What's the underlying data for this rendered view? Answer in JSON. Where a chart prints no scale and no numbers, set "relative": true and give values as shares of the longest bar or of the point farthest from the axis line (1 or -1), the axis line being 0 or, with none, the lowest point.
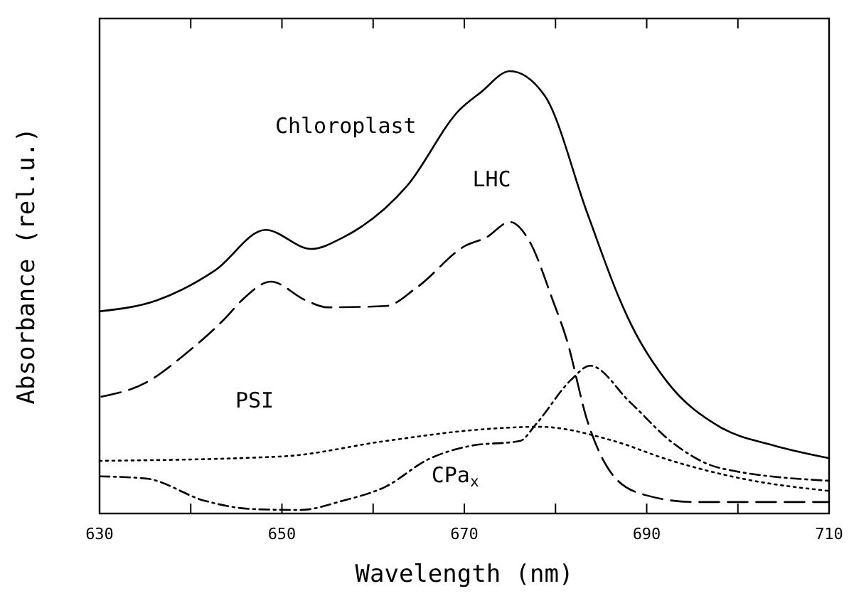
{
  "chart_data": {
    "type": "line",
    "relative": true,
    "xlabel": "Wavelength (nm)",
    "ylabel": "Absorbance (rel.u.)",
    "xlim": [
      630,
      710
    ],
    "xticks": [
      630,
      {
        "value": 640,
        "label": null
      },
      650,
      {
        "value": 660,
        "label": null
      },
      670,
      {
        "value": 680,
        "label": null
      },
      690,
      {
        "value": 700,
        "label": null
      },
      710
    ],
    "grid": false,
    "marker": "none",
    "series": [
      {
        "name": "Chloroplast",
        "color": "#000000",
        "line_style": "solid",
        "x": [
          630,
          636.3,
          642.7,
          648.2,
          653.2,
          656.7,
          663.7,
          669.5,
          671.8,
          675,
          678.8,
          683.5,
          687,
          688.2,
          692.3,
          698,
          703.9,
          710
        ],
        "values": [
          0.457,
          0.482,
          0.55,
          0.641,
          0.598,
          0.624,
          0.74,
          0.913,
          0.952,
          1,
          0.945,
          0.678,
          0.486,
          0.431,
          0.296,
          0.196,
          0.154,
          0.125
        ]
      },
      {
        "name": "LHC",
        "color": "#000000",
        "line_style": "longdash",
        "x": [
          630.2,
          635.1,
          639.2,
          643.9,
          645.6,
          648.8,
          652.6,
          655,
          661.4,
          664.8,
          670.1,
          672.4,
          675,
          677.1,
          679.7,
          681.2,
          683.5,
          686.4,
          689.8,
          695.2,
          710
        ],
        "values": [
          0.264,
          0.296,
          0.357,
          0.444,
          0.482,
          0.524,
          0.482,
          0.466,
          0.469,
          0.511,
          0.605,
          0.624,
          0.659,
          0.617,
          0.482,
          0.395,
          0.209,
          0.084,
          0.042,
          0.026,
          0.026
        ]
      },
      {
        "name": "PSI",
        "color": "#000000",
        "line_style": "dotted",
        "x": [
          630,
          650,
          661.4,
          671.8,
          678.2,
          686.4,
          692.3,
          700.9,
          710
        ],
        "values": [
          0.119,
          0.129,
          0.164,
          0.19,
          0.196,
          0.164,
          0.122,
          0.077,
          0.051
        ]
      },
      {
        "name": "CPa$_{x}$",
        "color": "#000000",
        "line_style": "dashdot",
        "x": [
          630,
          635.1,
          641.5,
          646.8,
          652,
          656.7,
          661.4,
          666,
          670.7,
          676.1,
          677.9,
          681.7,
          683.8,
          688.2,
          692.9,
          698,
          710
        ],
        "values": [
          0.084,
          0.079,
          0.029,
          0.01,
          0.008,
          0.029,
          0.061,
          0.122,
          0.153,
          0.164,
          0.203,
          0.302,
          0.334,
          0.251,
          0.159,
          0.103,
          0.074
        ]
      }
    ]
  }
}
